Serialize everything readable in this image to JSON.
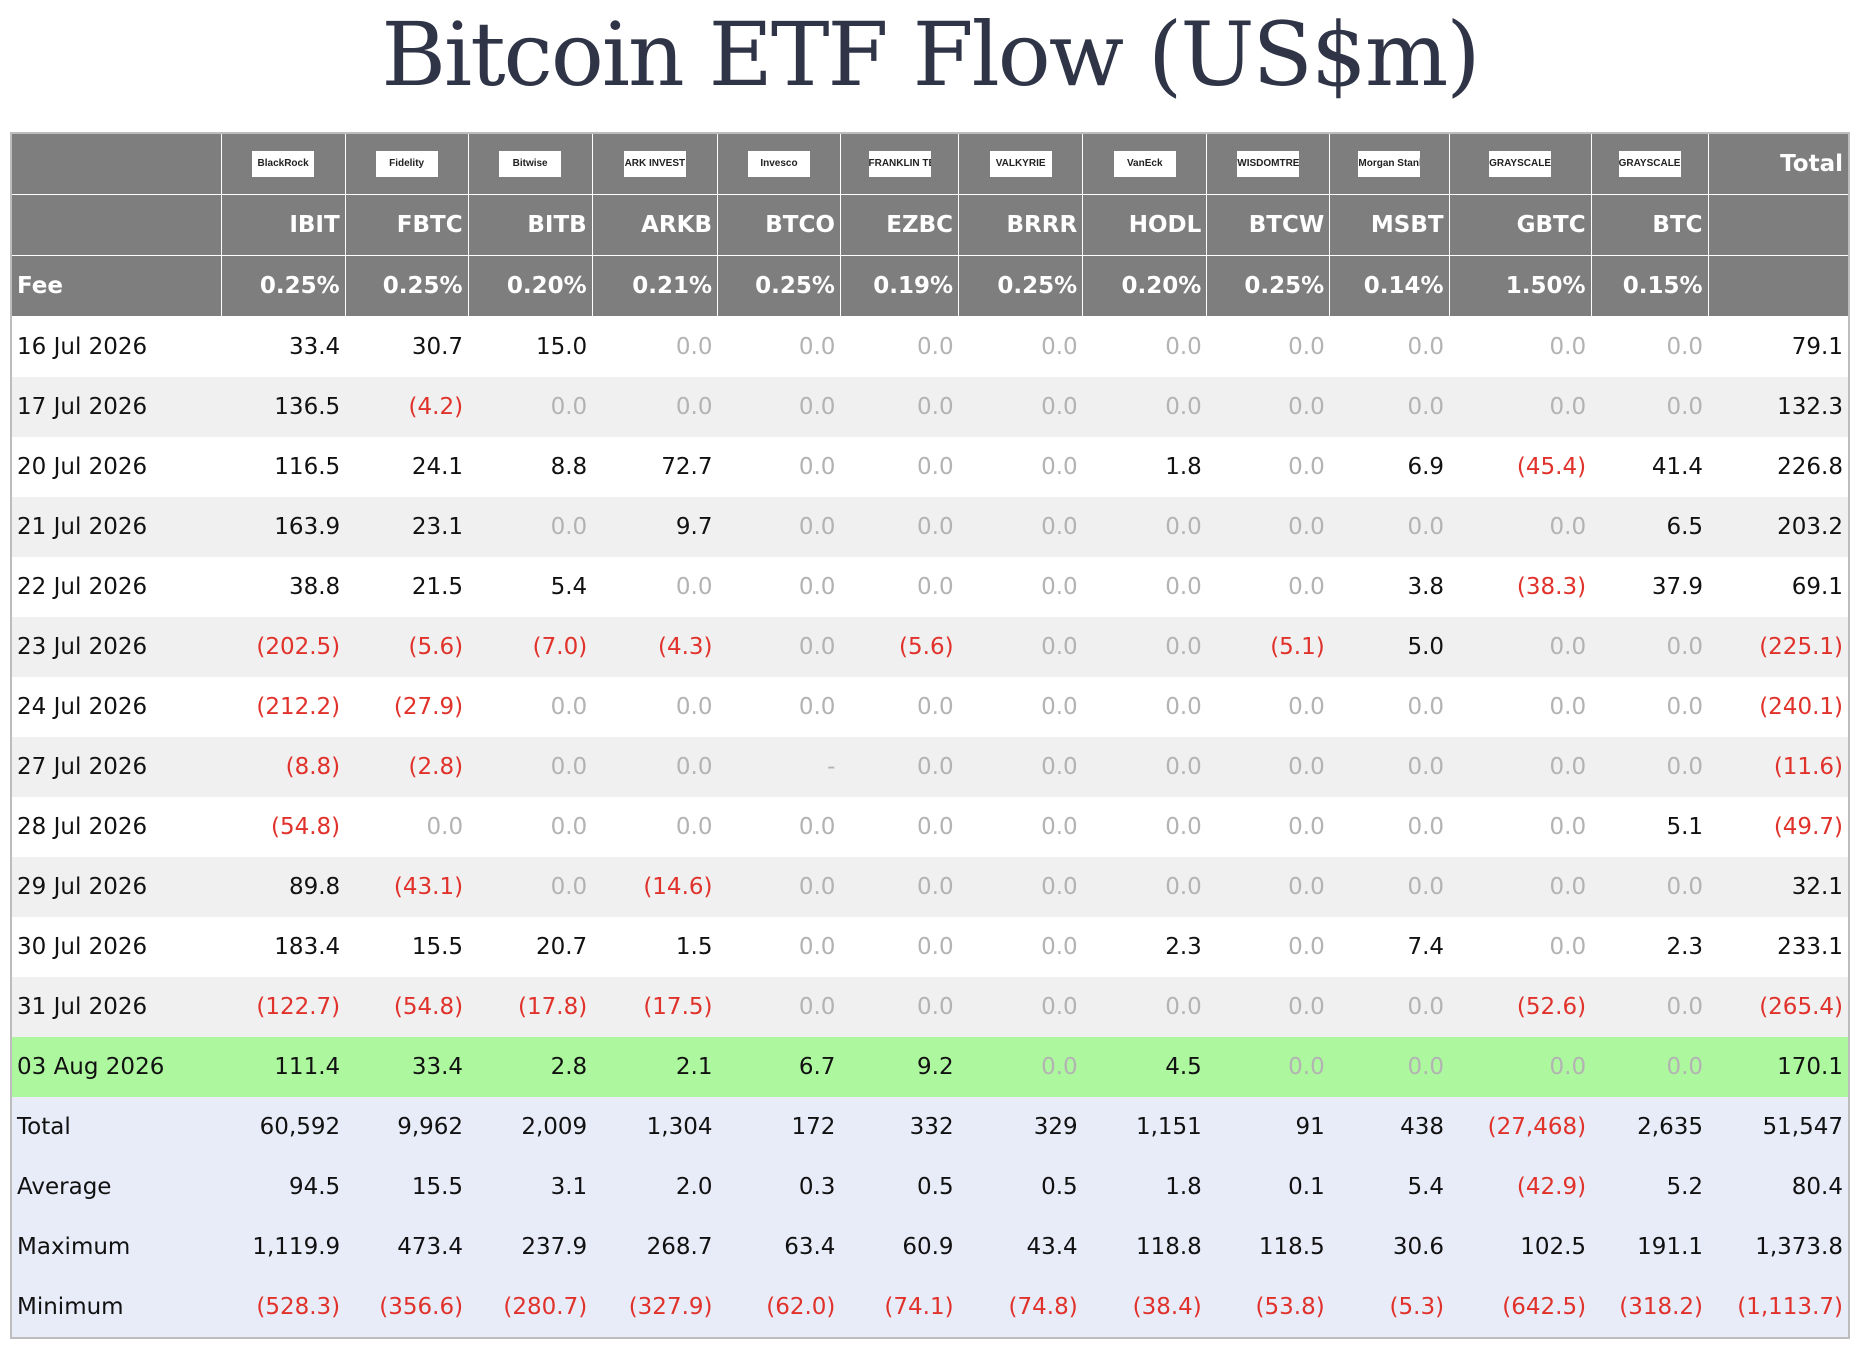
{
  "title": "Bitcoin ETF Flow (US$m)",
  "colors": {
    "header_bg": "#7e7e7e",
    "highlight_row": "#adf79f",
    "negative": "#e0322b",
    "summary_bg": "#e8ecf8",
    "title": "#2f3447"
  },
  "header": {
    "total_label": "Total",
    "fee_label": "Fee",
    "issuers": [
      "BlackRock",
      "Fidelity",
      "Bitwise",
      "ARK INVEST",
      "Invesco",
      "FRANKLIN TEMPLETON",
      "VALKYRIE",
      "VanEck",
      "WISDOMTREE",
      "Morgan Stanley",
      "GRAYSCALE",
      "GRAYSCALE"
    ],
    "tickers": [
      "IBIT",
      "FBTC",
      "BITB",
      "ARKB",
      "BTCO",
      "EZBC",
      "BRRR",
      "HODL",
      "BTCW",
      "MSBT",
      "GBTC",
      "BTC"
    ],
    "fees": [
      "0.25%",
      "0.25%",
      "0.20%",
      "0.21%",
      "0.25%",
      "0.19%",
      "0.25%",
      "0.20%",
      "0.25%",
      "0.14%",
      "1.50%",
      "0.15%"
    ]
  },
  "rows": [
    {
      "date": "16 Jul 2026",
      "values": [
        "33.4",
        "30.7",
        "15.0",
        "0.0",
        "0.0",
        "0.0",
        "0.0",
        "0.0",
        "0.0",
        "0.0",
        "0.0",
        "0.0"
      ],
      "total": "79.1"
    },
    {
      "date": "17 Jul 2026",
      "values": [
        "136.5",
        "(4.2)",
        "0.0",
        "0.0",
        "0.0",
        "0.0",
        "0.0",
        "0.0",
        "0.0",
        "0.0",
        "0.0",
        "0.0"
      ],
      "total": "132.3"
    },
    {
      "date": "20 Jul 2026",
      "values": [
        "116.5",
        "24.1",
        "8.8",
        "72.7",
        "0.0",
        "0.0",
        "0.0",
        "1.8",
        "0.0",
        "6.9",
        "(45.4)",
        "41.4"
      ],
      "total": "226.8"
    },
    {
      "date": "21 Jul 2026",
      "values": [
        "163.9",
        "23.1",
        "0.0",
        "9.7",
        "0.0",
        "0.0",
        "0.0",
        "0.0",
        "0.0",
        "0.0",
        "0.0",
        "6.5"
      ],
      "total": "203.2"
    },
    {
      "date": "22 Jul 2026",
      "values": [
        "38.8",
        "21.5",
        "5.4",
        "0.0",
        "0.0",
        "0.0",
        "0.0",
        "0.0",
        "0.0",
        "3.8",
        "(38.3)",
        "37.9"
      ],
      "total": "69.1"
    },
    {
      "date": "23 Jul 2026",
      "values": [
        "(202.5)",
        "(5.6)",
        "(7.0)",
        "(4.3)",
        "0.0",
        "(5.6)",
        "0.0",
        "0.0",
        "(5.1)",
        "5.0",
        "0.0",
        "0.0"
      ],
      "total": "(225.1)"
    },
    {
      "date": "24 Jul 2026",
      "values": [
        "(212.2)",
        "(27.9)",
        "0.0",
        "0.0",
        "0.0",
        "0.0",
        "0.0",
        "0.0",
        "0.0",
        "0.0",
        "0.0",
        "0.0"
      ],
      "total": "(240.1)"
    },
    {
      "date": "27 Jul 2026",
      "values": [
        "(8.8)",
        "(2.8)",
        "0.0",
        "0.0",
        "-",
        "0.0",
        "0.0",
        "0.0",
        "0.0",
        "0.0",
        "0.0",
        "0.0"
      ],
      "total": "(11.6)"
    },
    {
      "date": "28 Jul 2026",
      "values": [
        "(54.8)",
        "0.0",
        "0.0",
        "0.0",
        "0.0",
        "0.0",
        "0.0",
        "0.0",
        "0.0",
        "0.0",
        "0.0",
        "5.1"
      ],
      "total": "(49.7)"
    },
    {
      "date": "29 Jul 2026",
      "values": [
        "89.8",
        "(43.1)",
        "0.0",
        "(14.6)",
        "0.0",
        "0.0",
        "0.0",
        "0.0",
        "0.0",
        "0.0",
        "0.0",
        "0.0"
      ],
      "total": "32.1"
    },
    {
      "date": "30 Jul 2026",
      "values": [
        "183.4",
        "15.5",
        "20.7",
        "1.5",
        "0.0",
        "0.0",
        "0.0",
        "2.3",
        "0.0",
        "7.4",
        "0.0",
        "2.3"
      ],
      "total": "233.1"
    },
    {
      "date": "31 Jul 2026",
      "values": [
        "(122.7)",
        "(54.8)",
        "(17.8)",
        "(17.5)",
        "0.0",
        "0.0",
        "0.0",
        "0.0",
        "0.0",
        "0.0",
        "(52.6)",
        "0.0"
      ],
      "total": "(265.4)"
    },
    {
      "date": "03 Aug 2026",
      "values": [
        "111.4",
        "33.4",
        "2.8",
        "2.1",
        "6.7",
        "9.2",
        "0.0",
        "4.5",
        "0.0",
        "0.0",
        "0.0",
        "0.0"
      ],
      "total": "170.1"
    }
  ],
  "summary": [
    {
      "label": "Total",
      "values": [
        "60,592",
        "9,962",
        "2,009",
        "1,304",
        "172",
        "332",
        "329",
        "1,151",
        "91",
        "438",
        "(27,468)",
        "2,635"
      ],
      "total": "51,547"
    },
    {
      "label": "Average",
      "values": [
        "94.5",
        "15.5",
        "3.1",
        "2.0",
        "0.3",
        "0.5",
        "0.5",
        "1.8",
        "0.1",
        "5.4",
        "(42.9)",
        "5.2"
      ],
      "total": "80.4"
    },
    {
      "label": "Maximum",
      "values": [
        "1,119.9",
        "473.4",
        "237.9",
        "268.7",
        "63.4",
        "60.9",
        "43.4",
        "118.8",
        "118.5",
        "30.6",
        "102.5",
        "191.1"
      ],
      "total": "1,373.8"
    },
    {
      "label": "Minimum",
      "values": [
        "(528.3)",
        "(356.6)",
        "(280.7)",
        "(327.9)",
        "(62.0)",
        "(74.1)",
        "(74.8)",
        "(38.4)",
        "(53.8)",
        "(5.3)",
        "(642.5)",
        "(318.2)"
      ],
      "total": "(1,113.7)"
    }
  ],
  "chart_data": {
    "type": "table",
    "title": "Bitcoin ETF Flow (US$m)",
    "columns": [
      "IBIT",
      "FBTC",
      "BITB",
      "ARKB",
      "BTCO",
      "EZBC",
      "BRRR",
      "HODL",
      "BTCW",
      "MSBT",
      "GBTC",
      "BTC",
      "Total"
    ],
    "highlighted_row": "03 Aug 2026"
  }
}
